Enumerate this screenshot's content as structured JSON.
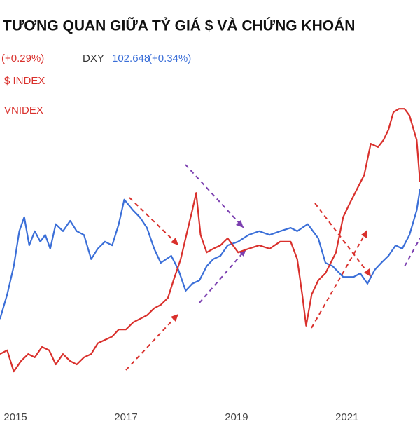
{
  "chart_data": {
    "type": "line",
    "title": "TƯƠNG QUAN GIỮA TỶ GIÁ $ VÀ CHỨNG KHOÁN",
    "header": {
      "change_left": "(+0.29%)",
      "symbol": "DXY",
      "price": "102.648",
      "change": "(+0.34%)"
    },
    "annotations": [
      "$ INDEX",
      "VNIDEX"
    ],
    "xlim": [
      2014.72,
      2022.32
    ],
    "xticks": [
      2015,
      2017,
      2019,
      2021
    ],
    "ylim": [
      0,
      100
    ],
    "series": [
      {
        "name": "DXY",
        "color": "#3b6fd8",
        "x": [
          2014.72,
          2014.85,
          2014.97,
          2015.07,
          2015.16,
          2015.25,
          2015.35,
          2015.45,
          2015.54,
          2015.63,
          2015.73,
          2015.86,
          2015.99,
          2016.11,
          2016.24,
          2016.37,
          2016.49,
          2016.62,
          2016.75,
          2016.87,
          2016.97,
          2017.13,
          2017.25,
          2017.38,
          2017.51,
          2017.63,
          2017.82,
          2017.95,
          2018.08,
          2018.2,
          2018.33,
          2018.46,
          2018.58,
          2018.71,
          2018.84,
          2019.03,
          2019.22,
          2019.41,
          2019.6,
          2019.79,
          2019.98,
          2020.1,
          2020.29,
          2020.48,
          2020.61,
          2020.74,
          2020.93,
          2021.12,
          2021.24,
          2021.37,
          2021.5,
          2021.62,
          2021.75,
          2021.88,
          2022.0,
          2022.13,
          2022.26,
          2022.32
        ],
        "values": [
          26.0,
          33.3,
          41.7,
          52.1,
          56.3,
          47.9,
          52.1,
          49.0,
          51.0,
          46.9,
          54.2,
          52.1,
          55.2,
          52.1,
          51.0,
          43.8,
          46.9,
          49.0,
          47.9,
          54.2,
          61.5,
          58.3,
          56.3,
          53.1,
          46.9,
          42.7,
          44.8,
          40.6,
          34.4,
          36.5,
          37.5,
          41.7,
          43.8,
          44.8,
          47.9,
          49.0,
          51.0,
          52.1,
          51.0,
          52.1,
          53.1,
          52.1,
          54.2,
          50.0,
          42.7,
          41.7,
          38.5,
          38.5,
          39.6,
          36.5,
          40.6,
          42.7,
          44.8,
          47.9,
          46.9,
          51.0,
          58.3,
          64.6
        ]
      },
      {
        "name": "VNIDEX",
        "color": "#d9302c",
        "x": [
          2014.72,
          2014.85,
          2014.97,
          2015.1,
          2015.23,
          2015.35,
          2015.48,
          2015.61,
          2015.73,
          2015.86,
          2015.99,
          2016.11,
          2016.24,
          2016.37,
          2016.49,
          2016.62,
          2016.75,
          2016.87,
          2017.0,
          2017.13,
          2017.25,
          2017.38,
          2017.51,
          2017.63,
          2017.76,
          2017.86,
          2017.99,
          2018.11,
          2018.2,
          2018.27,
          2018.35,
          2018.46,
          2018.58,
          2018.71,
          2018.84,
          2019.03,
          2019.22,
          2019.41,
          2019.6,
          2019.79,
          2019.98,
          2020.1,
          2020.19,
          2020.26,
          2020.36,
          2020.48,
          2020.61,
          2020.8,
          2020.93,
          2021.05,
          2021.18,
          2021.31,
          2021.43,
          2021.56,
          2021.66,
          2021.75,
          2021.84,
          2021.94,
          2022.04,
          2022.13,
          2022.26,
          2022.32
        ],
        "values": [
          15.6,
          16.7,
          10.4,
          13.5,
          15.6,
          14.6,
          17.7,
          16.7,
          12.5,
          15.6,
          13.5,
          12.5,
          14.6,
          15.6,
          18.8,
          19.8,
          20.8,
          22.9,
          22.9,
          25.0,
          26.0,
          27.1,
          29.2,
          30.2,
          32.3,
          37.5,
          43.8,
          52.1,
          58.3,
          63.5,
          51.0,
          45.8,
          46.9,
          47.9,
          50.0,
          45.8,
          46.9,
          47.9,
          46.9,
          49.0,
          49.0,
          43.8,
          33.3,
          24.0,
          33.3,
          37.5,
          39.6,
          45.8,
          56.3,
          60.4,
          64.6,
          68.8,
          78.1,
          77.1,
          79.2,
          82.3,
          87.5,
          88.5,
          88.5,
          86.5,
          79.2,
          66.7
        ]
      }
    ]
  }
}
